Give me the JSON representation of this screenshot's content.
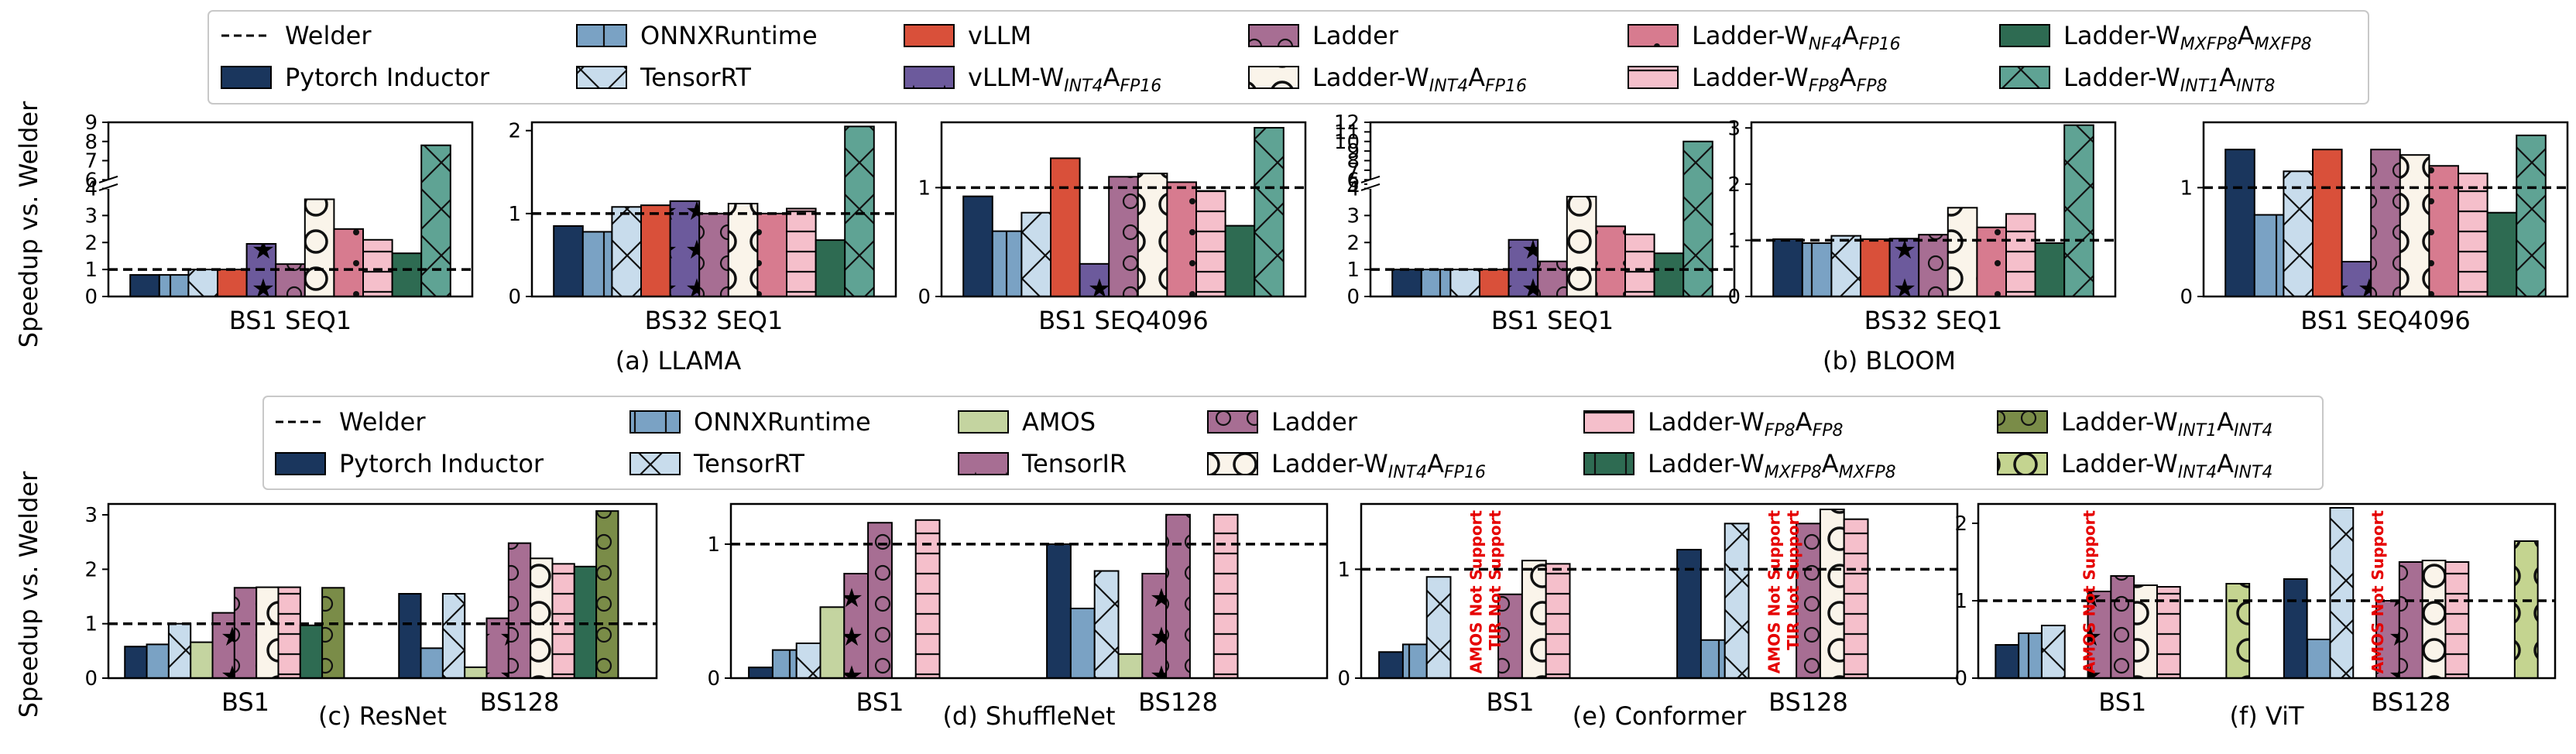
{
  "top": {
    "ylabel": "Speedup vs. Welder",
    "legend": [
      {
        "label": "Welder",
        "kind": "line"
      },
      {
        "label": "Pytorch Inductor",
        "color": "#1a365d",
        "hatch": "none"
      },
      {
        "label": "ONNXRuntime",
        "color": "#7aa2c4",
        "hatch": "vbar"
      },
      {
        "label": "TensorRT",
        "color": "#c8dcec",
        "hatch": "diag"
      },
      {
        "label": "vLLM",
        "color": "#d9503a",
        "hatch": "none"
      },
      {
        "label": "vLLM-W",
        "sub1": "INT4",
        "mid": "A",
        "sub2": "FP16",
        "color": "#6c5a9c",
        "hatch": "star"
      },
      {
        "label": "Ladder",
        "color": "#a76e93",
        "hatch": "circle"
      },
      {
        "label": "Ladder-W",
        "sub1": "INT4",
        "mid": "A",
        "sub2": "FP16",
        "color": "#faf4ea",
        "hatch": "bigcircle"
      },
      {
        "label": "Ladder-W",
        "sub1": "NF4",
        "mid": "A",
        "sub2": "FP16",
        "color": "#d77b8f",
        "hatch": "dot"
      },
      {
        "label": "Ladder-W",
        "sub1": "FP8",
        "mid": "A",
        "sub2": "FP8",
        "color": "#f5bfcb",
        "hatch": "hbar"
      },
      {
        "label": "Ladder-W",
        "sub1": "MXFP8",
        "mid": "A",
        "sub2": "MXFP8",
        "color": "#2e6b52",
        "hatch": "none"
      },
      {
        "label": "Ladder-W",
        "sub1": "INT1",
        "mid": "A",
        "sub2": "INT8",
        "color": "#5fa394",
        "hatch": "diag"
      }
    ],
    "group_captions": [
      "(a) LLAMA",
      "(b) BLOOM"
    ]
  },
  "bottom": {
    "ylabel": "Speedup vs. Welder",
    "legend": [
      {
        "label": "Welder",
        "kind": "line"
      },
      {
        "label": "Pytorch Inductor",
        "color": "#1a365d",
        "hatch": "none"
      },
      {
        "label": "ONNXRuntime",
        "color": "#7aa2c4",
        "hatch": "vbar"
      },
      {
        "label": "TensorRT",
        "color": "#c8dcec",
        "hatch": "diag"
      },
      {
        "label": "AMOS",
        "color": "#c4d4a0",
        "hatch": "none"
      },
      {
        "label": "TensorIR",
        "color": "#a76e93",
        "hatch": "star"
      },
      {
        "label": "Ladder",
        "color": "#a76e93",
        "hatch": "circle"
      },
      {
        "label": "Ladder-W",
        "sub1": "INT4",
        "mid": "A",
        "sub2": "FP16",
        "color": "#faf4ea",
        "hatch": "bigcircle"
      },
      {
        "label": "Ladder-W",
        "sub1": "FP8",
        "mid": "A",
        "sub2": "FP8",
        "color": "#f5bfcb",
        "hatch": "hbar"
      },
      {
        "label": "Ladder-W",
        "sub1": "MXFP8",
        "mid": "A",
        "sub2": "MXFP8",
        "color": "#2e6b52",
        "hatch": "vbar"
      },
      {
        "label": "Ladder-W",
        "sub1": "INT1",
        "mid": "A",
        "sub2": "INT4",
        "color": "#7a8c48",
        "hatch": "circle"
      },
      {
        "label": "Ladder-W",
        "sub1": "INT4",
        "mid": "A",
        "sub2": "INT4",
        "color": "#c4d490",
        "hatch": "bigcircle"
      }
    ]
  },
  "chart_data": [
    {
      "type": "bar",
      "caption": "",
      "categories": [
        "BS1 SEQ1"
      ],
      "ylim": [
        0,
        9
      ],
      "broken_axis": true,
      "yticks": [
        "0",
        "1",
        "2",
        "3",
        "4",
        "6",
        "7",
        "8",
        "9"
      ],
      "welder_line": 1,
      "series_values": [
        [
          0.8
        ],
        [
          0.8
        ],
        [
          1.0
        ],
        [
          1.0
        ],
        [
          1.95
        ],
        [
          1.2
        ],
        [
          3.6
        ],
        [
          2.5
        ],
        [
          2.1
        ],
        [
          1.6
        ],
        [
          7.8
        ]
      ]
    },
    {
      "type": "bar",
      "caption": "",
      "categories": [
        "BS32 SEQ1"
      ],
      "ylim": [
        0,
        2.1
      ],
      "yticks": [
        "0",
        "1",
        "2"
      ],
      "welder_line": 1,
      "series_values": [
        [
          0.85
        ],
        [
          0.78
        ],
        [
          1.08
        ],
        [
          1.1
        ],
        [
          1.15
        ],
        [
          1.0
        ],
        [
          1.12
        ],
        [
          1.0
        ],
        [
          1.06
        ],
        [
          0.68
        ],
        [
          2.05
        ]
      ]
    },
    {
      "type": "bar",
      "caption": "",
      "categories": [
        "BS1 SEQ4096"
      ],
      "ylim": [
        0,
        1.6
      ],
      "yticks": [
        "0",
        "1"
      ],
      "welder_line": 1,
      "series_values": [
        [
          0.92
        ],
        [
          0.6
        ],
        [
          0.77
        ],
        [
          1.27
        ],
        [
          0.3
        ],
        [
          1.1
        ],
        [
          1.13
        ],
        [
          1.05
        ],
        [
          0.97
        ],
        [
          0.65
        ],
        [
          1.55
        ]
      ]
    },
    {
      "type": "bar",
      "caption": "",
      "categories": [
        "BS1 SEQ1"
      ],
      "ylim": [
        0,
        12
      ],
      "broken_axis": true,
      "yticks": [
        "0",
        "1",
        "2",
        "3",
        "4",
        "5",
        "6",
        "7",
        "8",
        "9",
        "10",
        "11",
        "12"
      ],
      "welder_line": 1,
      "series_values": [
        [
          1.0
        ],
        [
          1.0
        ],
        [
          1.0
        ],
        [
          1.0
        ],
        [
          2.1
        ],
        [
          1.3
        ],
        [
          3.7
        ],
        [
          2.6
        ],
        [
          2.3
        ],
        [
          1.6
        ],
        [
          10.0
        ]
      ]
    },
    {
      "type": "bar",
      "caption": "",
      "categories": [
        "BS32 SEQ1"
      ],
      "ylim": [
        0,
        3.1
      ],
      "yticks": [
        "0",
        "1",
        "2",
        "3"
      ],
      "welder_line": 1,
      "series_values": [
        [
          1.02
        ],
        [
          0.95
        ],
        [
          1.08
        ],
        [
          1.02
        ],
        [
          1.03
        ],
        [
          1.1
        ],
        [
          1.58
        ],
        [
          1.23
        ],
        [
          1.47
        ],
        [
          0.95
        ],
        [
          3.05
        ]
      ]
    },
    {
      "type": "bar",
      "caption": "",
      "categories": [
        "BS1 SEQ4096"
      ],
      "ylim": [
        0,
        1.6
      ],
      "yticks": [
        "0",
        "1"
      ],
      "welder_line": 1,
      "series_values": [
        [
          1.35
        ],
        [
          0.75
        ],
        [
          1.15
        ],
        [
          1.35
        ],
        [
          0.32
        ],
        [
          1.35
        ],
        [
          1.3
        ],
        [
          1.2
        ],
        [
          1.13
        ],
        [
          0.77
        ],
        [
          1.48
        ]
      ]
    },
    {
      "type": "bar",
      "caption": "(c) ResNet",
      "categories": [
        "BS1",
        "BS128"
      ],
      "ylim": [
        0,
        3.2
      ],
      "yticks": [
        "0",
        "1",
        "2",
        "3"
      ],
      "welder_line": 1,
      "series_values": [
        [
          0.58,
          1.55
        ],
        [
          0.62,
          0.55
        ],
        [
          1.0,
          1.55
        ],
        [
          0.66,
          0.2
        ],
        [
          1.2,
          1.1
        ],
        [
          1.66,
          2.48
        ],
        [
          1.67,
          2.2
        ],
        [
          1.67,
          2.1
        ],
        [
          0.97,
          2.05
        ],
        [
          1.66,
          3.07
        ],
        [
          0,
          0
        ]
      ]
    },
    {
      "type": "bar",
      "caption": "(d) ShuffleNet",
      "categories": [
        "BS1",
        "BS128"
      ],
      "ylim": [
        0,
        1.3
      ],
      "yticks": [
        "0",
        "1"
      ],
      "welder_line": 1,
      "series_values": [
        [
          0.08,
          1.0
        ],
        [
          0.21,
          0.52
        ],
        [
          0.26,
          0.8
        ],
        [
          0.53,
          0.18
        ],
        [
          0.78,
          0.78
        ],
        [
          1.16,
          1.22
        ],
        [
          0,
          0
        ],
        [
          1.18,
          1.22
        ],
        [
          0,
          0
        ],
        [
          0,
          0
        ],
        [
          0,
          0
        ]
      ]
    },
    {
      "type": "bar",
      "caption": "(e) Conformer",
      "categories": [
        "BS1",
        "BS128"
      ],
      "ylim": [
        0,
        1.6
      ],
      "yticks": [
        "0",
        "1"
      ],
      "welder_line": 1,
      "annotations": [
        "AMOS Not Support",
        "TIR Not Support"
      ],
      "series_values": [
        [
          0.24,
          1.18
        ],
        [
          0.31,
          0.35
        ],
        [
          0.93,
          1.42
        ],
        [
          0,
          0
        ],
        [
          0,
          0
        ],
        [
          0.77,
          1.42
        ],
        [
          1.08,
          1.55
        ],
        [
          1.05,
          1.46
        ],
        [
          0,
          0
        ],
        [
          0,
          0
        ],
        [
          0,
          0
        ]
      ]
    },
    {
      "type": "bar",
      "caption": "(f) ViT",
      "categories": [
        "BS1",
        "BS128"
      ],
      "ylim": [
        0,
        2.25
      ],
      "yticks": [
        "0",
        "1",
        "2"
      ],
      "welder_line": 1,
      "annotations": [
        "AMOS Not Support"
      ],
      "series_values": [
        [
          0.43,
          1.28
        ],
        [
          0.58,
          0.5
        ],
        [
          0.68,
          2.2
        ],
        [
          0,
          0
        ],
        [
          1.12,
          1.0
        ],
        [
          1.32,
          1.5
        ],
        [
          1.2,
          1.52
        ],
        [
          1.18,
          1.5
        ],
        [
          0,
          0
        ],
        [
          0,
          0
        ],
        [
          1.22,
          1.77
        ]
      ]
    }
  ]
}
